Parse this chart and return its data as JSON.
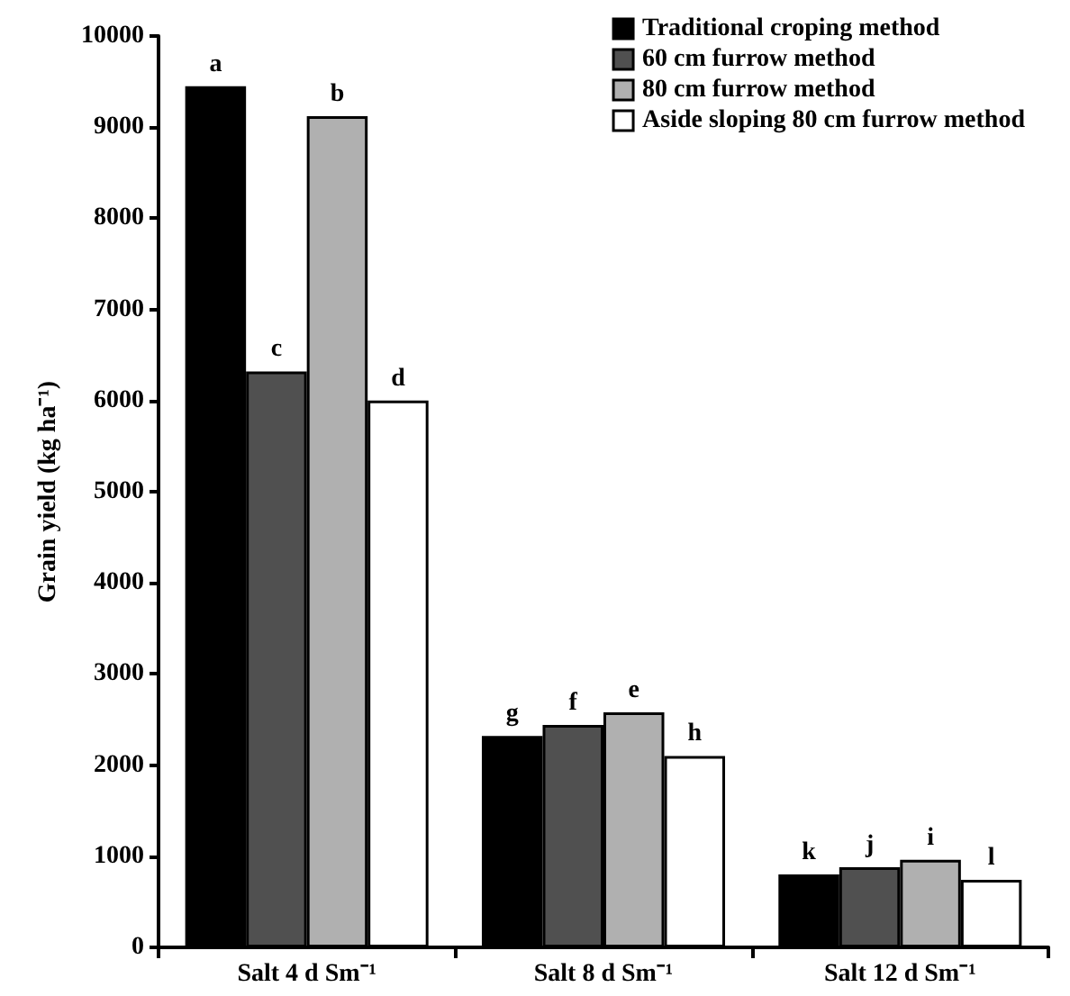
{
  "chart_data": {
    "type": "bar",
    "ylabel": "Grain yield (kg ha⁻¹)",
    "categories": [
      "Salt 4 d Sm⁻¹",
      "Salt 8 d Sm⁻¹",
      "Salt 12 d Sm⁻¹"
    ],
    "series": [
      {
        "name": "Traditional croping method",
        "color": "#000000",
        "values": [
          9450,
          2320,
          800
        ],
        "value_labels": [
          "a",
          "g",
          "k"
        ]
      },
      {
        "name": "60 cm furrow method",
        "color": "#505050",
        "values": [
          6320,
          2440,
          880
        ],
        "value_labels": [
          "c",
          "f",
          "j"
        ]
      },
      {
        "name": "80 cm furrow method",
        "color": "#b0b0b0",
        "values": [
          9120,
          2580,
          960
        ],
        "value_labels": [
          "b",
          "e",
          "i"
        ]
      },
      {
        "name": "Aside sloping 80 cm furrow method",
        "color": "#ffffff",
        "values": [
          6000,
          2100,
          740
        ],
        "value_labels": [
          "d",
          "h",
          "l"
        ]
      }
    ],
    "ylim": [
      0,
      10000
    ],
    "yticks": [
      0,
      1000,
      2000,
      3000,
      4000,
      5000,
      6000,
      7000,
      8000,
      9000,
      10000
    ],
    "grid": false,
    "legend": "top right"
  }
}
